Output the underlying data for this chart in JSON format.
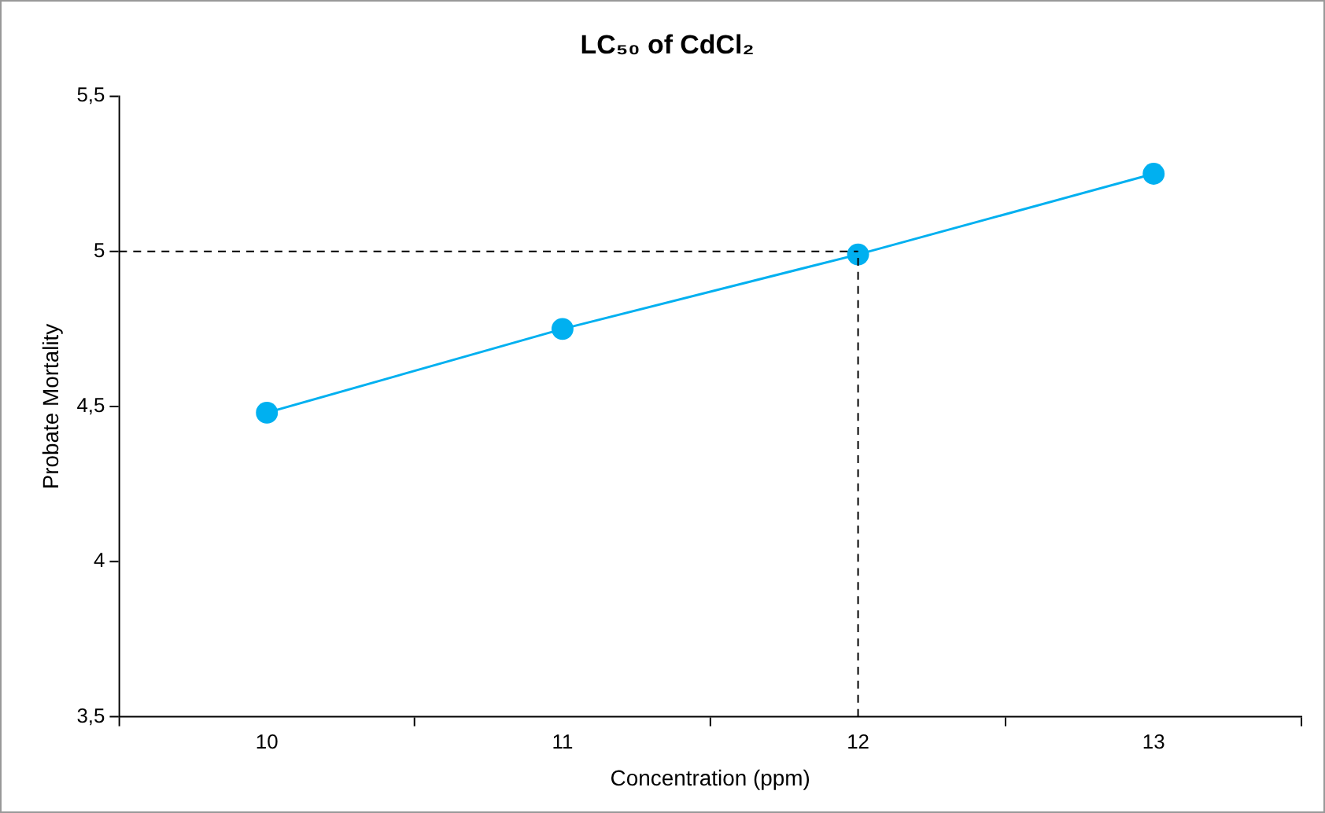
{
  "chart_data": {
    "type": "line",
    "title": "LC₅₀ of CdCl₂",
    "xlabel": "Concentration (ppm)",
    "ylabel": "Probate Mortality",
    "categories": [
      "10",
      "11",
      "12",
      "13"
    ],
    "series": [
      {
        "color": "#00b0f0",
        "values": [
          4.48,
          4.75,
          4.99,
          5.25
        ]
      }
    ],
    "ylim": [
      3.5,
      5.5
    ],
    "yticks": [
      {
        "value": 3.5,
        "label": "3,5"
      },
      4,
      {
        "value": 4.5,
        "label": "4,5"
      },
      5,
      {
        "value": 5.5,
        "label": "5,5"
      }
    ],
    "ref_lines": [
      {
        "axis": "y",
        "value": 5,
        "color": "#000000",
        "line_style": "dashed"
      },
      {
        "axis": "x",
        "value": "12",
        "color": "#000000",
        "line_style": "dashed"
      }
    ],
    "grid": false,
    "legend": false,
    "marker": "circle",
    "line_style": "solid"
  }
}
